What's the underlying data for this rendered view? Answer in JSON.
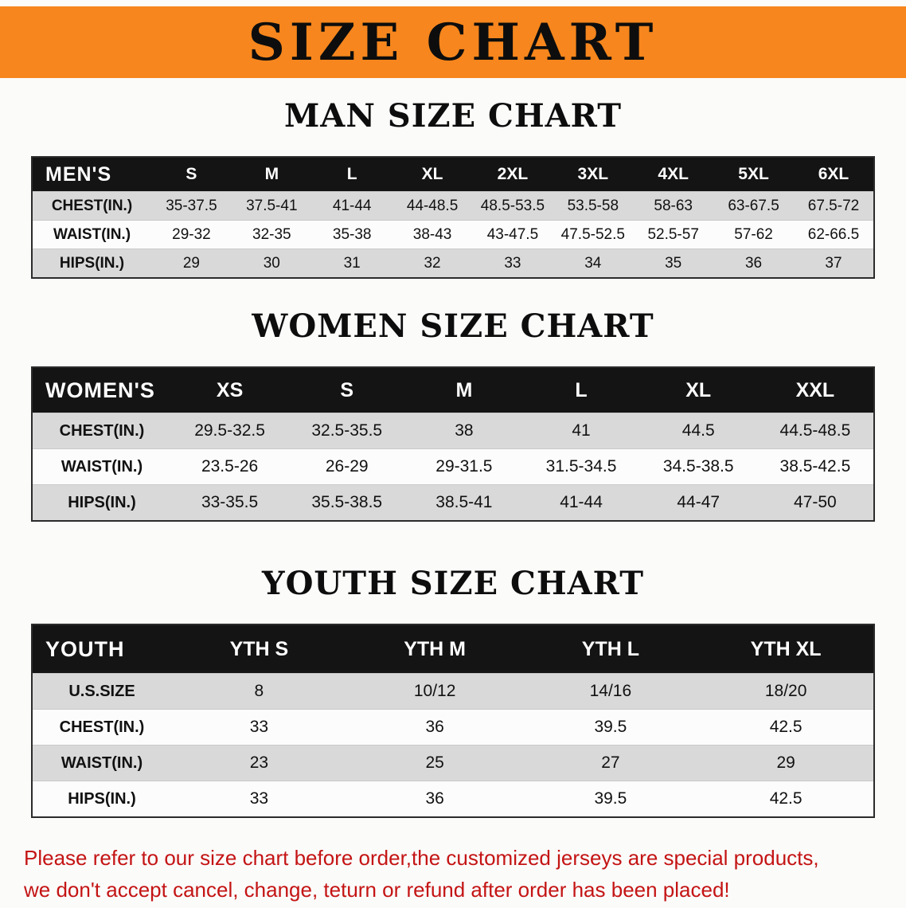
{
  "banner": {
    "title": "SIZE CHART"
  },
  "colors": {
    "banner_bg": "#f6861d",
    "banner_text": "#0d0d0d",
    "heading_text": "#0d0d0d",
    "table_header_bg": "#141414",
    "table_header_text": "#ffffff",
    "row_gray": "#d9d9d9",
    "row_white": "#fcfcfc",
    "footer_text": "#c41414"
  },
  "men": {
    "heading": "MAN SIZE CHART",
    "header": {
      "label": "MEN'S",
      "sizes": [
        "S",
        "M",
        "L",
        "XL",
        "2XL",
        "3XL",
        "4XL",
        "5XL",
        "6XL"
      ]
    },
    "rows": [
      {
        "label": "CHEST(IN.)",
        "values": [
          "35-37.5",
          "37.5-41",
          "41-44",
          "44-48.5",
          "48.5-53.5",
          "53.5-58",
          "58-63",
          "63-67.5",
          "67.5-72"
        ]
      },
      {
        "label": "WAIST(IN.)",
        "values": [
          "29-32",
          "32-35",
          "35-38",
          "38-43",
          "43-47.5",
          "47.5-52.5",
          "52.5-57",
          "57-62",
          "62-66.5"
        ]
      },
      {
        "label": "HIPS(IN.)",
        "values": [
          "29",
          "30",
          "31",
          "32",
          "33",
          "34",
          "35",
          "36",
          "37"
        ]
      }
    ]
  },
  "women": {
    "heading": "WOMEN SIZE CHART",
    "header": {
      "label": "WOMEN'S",
      "sizes": [
        "XS",
        "S",
        "M",
        "L",
        "XL",
        "XXL"
      ]
    },
    "rows": [
      {
        "label": "CHEST(IN.)",
        "values": [
          "29.5-32.5",
          "32.5-35.5",
          "38",
          "41",
          "44.5",
          "44.5-48.5"
        ]
      },
      {
        "label": "WAIST(IN.)",
        "values": [
          "23.5-26",
          "26-29",
          "29-31.5",
          "31.5-34.5",
          "34.5-38.5",
          "38.5-42.5"
        ]
      },
      {
        "label": "HIPS(IN.)",
        "values": [
          "33-35.5",
          "35.5-38.5",
          "38.5-41",
          "41-44",
          "44-47",
          "47-50"
        ]
      }
    ]
  },
  "youth": {
    "heading": "YOUTH SIZE CHART",
    "header": {
      "label": "YOUTH",
      "sizes": [
        "YTH S",
        "YTH M",
        "YTH L",
        "YTH XL"
      ]
    },
    "rows": [
      {
        "label": "U.S.SIZE",
        "values": [
          "8",
          "10/12",
          "14/16",
          "18/20"
        ]
      },
      {
        "label": "CHEST(IN.)",
        "values": [
          "33",
          "36",
          "39.5",
          "42.5"
        ]
      },
      {
        "label": "WAIST(IN.)",
        "values": [
          "23",
          "25",
          "27",
          "29"
        ]
      },
      {
        "label": "HIPS(IN.)",
        "values": [
          "33",
          "36",
          "39.5",
          "42.5"
        ]
      }
    ]
  },
  "footer": {
    "line1": "Please refer to our size chart before order,the customized jerseys are special products,",
    "line2": "we don't accept cancel, change, teturn or refund after order has been placed!"
  }
}
